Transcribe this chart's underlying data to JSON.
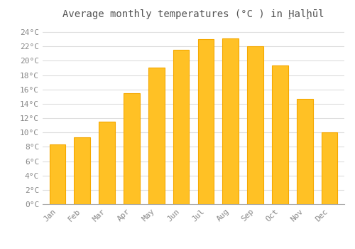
{
  "title": "Average monthly temperatures (°C ) in Ḩalḩūl",
  "months": [
    "Jan",
    "Feb",
    "Mar",
    "Apr",
    "May",
    "Jun",
    "Jul",
    "Aug",
    "Sep",
    "Oct",
    "Nov",
    "Dec"
  ],
  "values": [
    8.3,
    9.3,
    11.5,
    15.5,
    19.0,
    21.5,
    23.0,
    23.1,
    22.0,
    19.3,
    14.7,
    10.0
  ],
  "bar_color": "#FFC125",
  "bar_edge_color": "#F5A800",
  "background_color": "#FFFFFF",
  "grid_color": "#DDDDDD",
  "ylim": [
    0,
    25
  ],
  "ytick_step": 2,
  "title_fontsize": 10,
  "tick_fontsize": 8
}
